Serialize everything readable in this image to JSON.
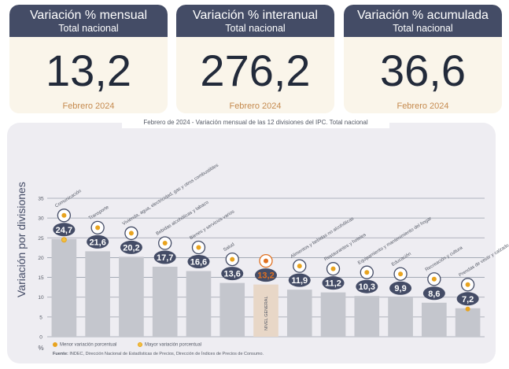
{
  "cards": [
    {
      "title": "Variación % mensual",
      "subtitle": "Total nacional",
      "value": "13,2",
      "date": "Febrero 2024"
    },
    {
      "title": "Variación % interanual",
      "subtitle": "Total nacional",
      "value": "276,2",
      "date": "Febrero 2024"
    },
    {
      "title": "Variación % acumulada",
      "subtitle": "Total nacional",
      "value": "36,6",
      "date": "Febrero 2024"
    }
  ],
  "panel": {
    "title_date": "Febrero de 2024",
    "title_text": "Variación mensual de las 12 divisiones del IPC. Total nacional",
    "yaxis_title": "Variación por divisiones",
    "legend_min": "Menor variación porcentual",
    "legend_max": "Mayor variación porcentual",
    "source_label": "Fuente:",
    "source_text": "INDEC, Dirección Nacional de Estadísticas de Precios, Dirección de Índices de Precios de Consumo."
  },
  "colors": {
    "dark": "#444c66",
    "bar": "#c4c6cd",
    "highlight": "#e8d7c7",
    "accent": "#e8a31e",
    "orange": "#e07020"
  },
  "chart_data": {
    "type": "bar",
    "title": "Febrero de 2024 - Variación mensual de las 12 divisiones del IPC. Total nacional",
    "ylabel": "Variación por divisiones",
    "yunit": "%",
    "ylim": [
      0,
      35
    ],
    "yticks": [
      "0",
      "5",
      "10",
      "15",
      "20",
      "25",
      "30",
      "35"
    ],
    "grid": true,
    "categories": [
      "Comunicación",
      "Transporte",
      "Vivienda, agua, electricidad, gas y otros combustibles",
      "Bebidas alcohólicas y tabaco",
      "Bienes y servicios varios",
      "Salud",
      "NIVEL GENERAL",
      "Alimentos y bebidas no alcohólicas",
      "Restaurantes y hoteles",
      "Equipamiento y mantenimiento del hogar",
      "Educación",
      "Recreación y cultura",
      "Prendas de vestir y calzado"
    ],
    "labels": [
      "24,7",
      "21,6",
      "20,2",
      "17,7",
      "16,6",
      "13,6",
      "13,2",
      "11,9",
      "11,2",
      "10,3",
      "9,9",
      "8,6",
      "7,2"
    ],
    "values": [
      24.7,
      21.6,
      20.2,
      17.7,
      16.6,
      13.6,
      13.2,
      11.9,
      11.2,
      10.3,
      9.9,
      8.6,
      7.2
    ],
    "general_label": "NIVEL GENERAL",
    "max_marker_index": 0,
    "min_marker_index": 12
  }
}
